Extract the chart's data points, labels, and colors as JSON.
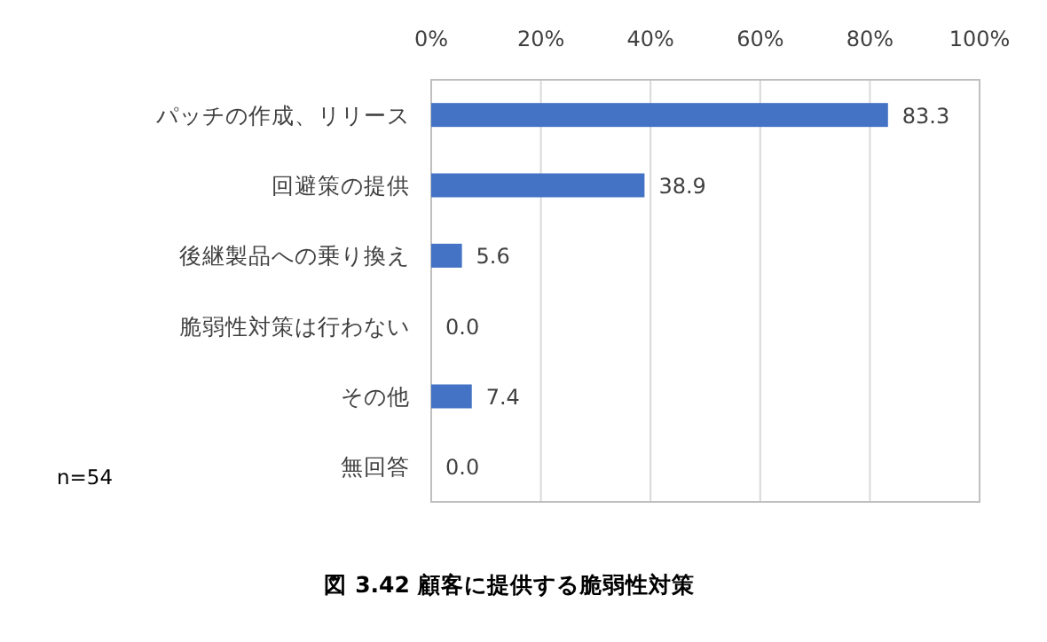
{
  "chart_data": {
    "type": "bar",
    "orientation": "horizontal",
    "title": "図 3.42 顧客に提供する脆弱性対策",
    "categories": [
      "パッチの作成、リリース",
      "回避策の提供",
      "後継製品への乗り換え",
      "脆弱性対策は行わない",
      "その他",
      "無回答"
    ],
    "values": [
      83.3,
      38.9,
      5.6,
      0.0,
      7.4,
      0.0
    ],
    "value_labels": [
      "83.3",
      "38.9",
      "5.6",
      "0.0",
      "7.4",
      "0.0"
    ],
    "color": "#4472c4",
    "xlim": [
      0,
      100
    ],
    "xticks": [
      {
        "value": 0,
        "label": "0%"
      },
      {
        "value": 20,
        "label": "20%"
      },
      {
        "value": 40,
        "label": "40%"
      },
      {
        "value": 60,
        "label": "60%"
      },
      {
        "value": 80,
        "label": "80%"
      },
      {
        "value": 100,
        "label": "100%"
      }
    ],
    "grid": "x",
    "annotations": [
      "n=54"
    ]
  }
}
